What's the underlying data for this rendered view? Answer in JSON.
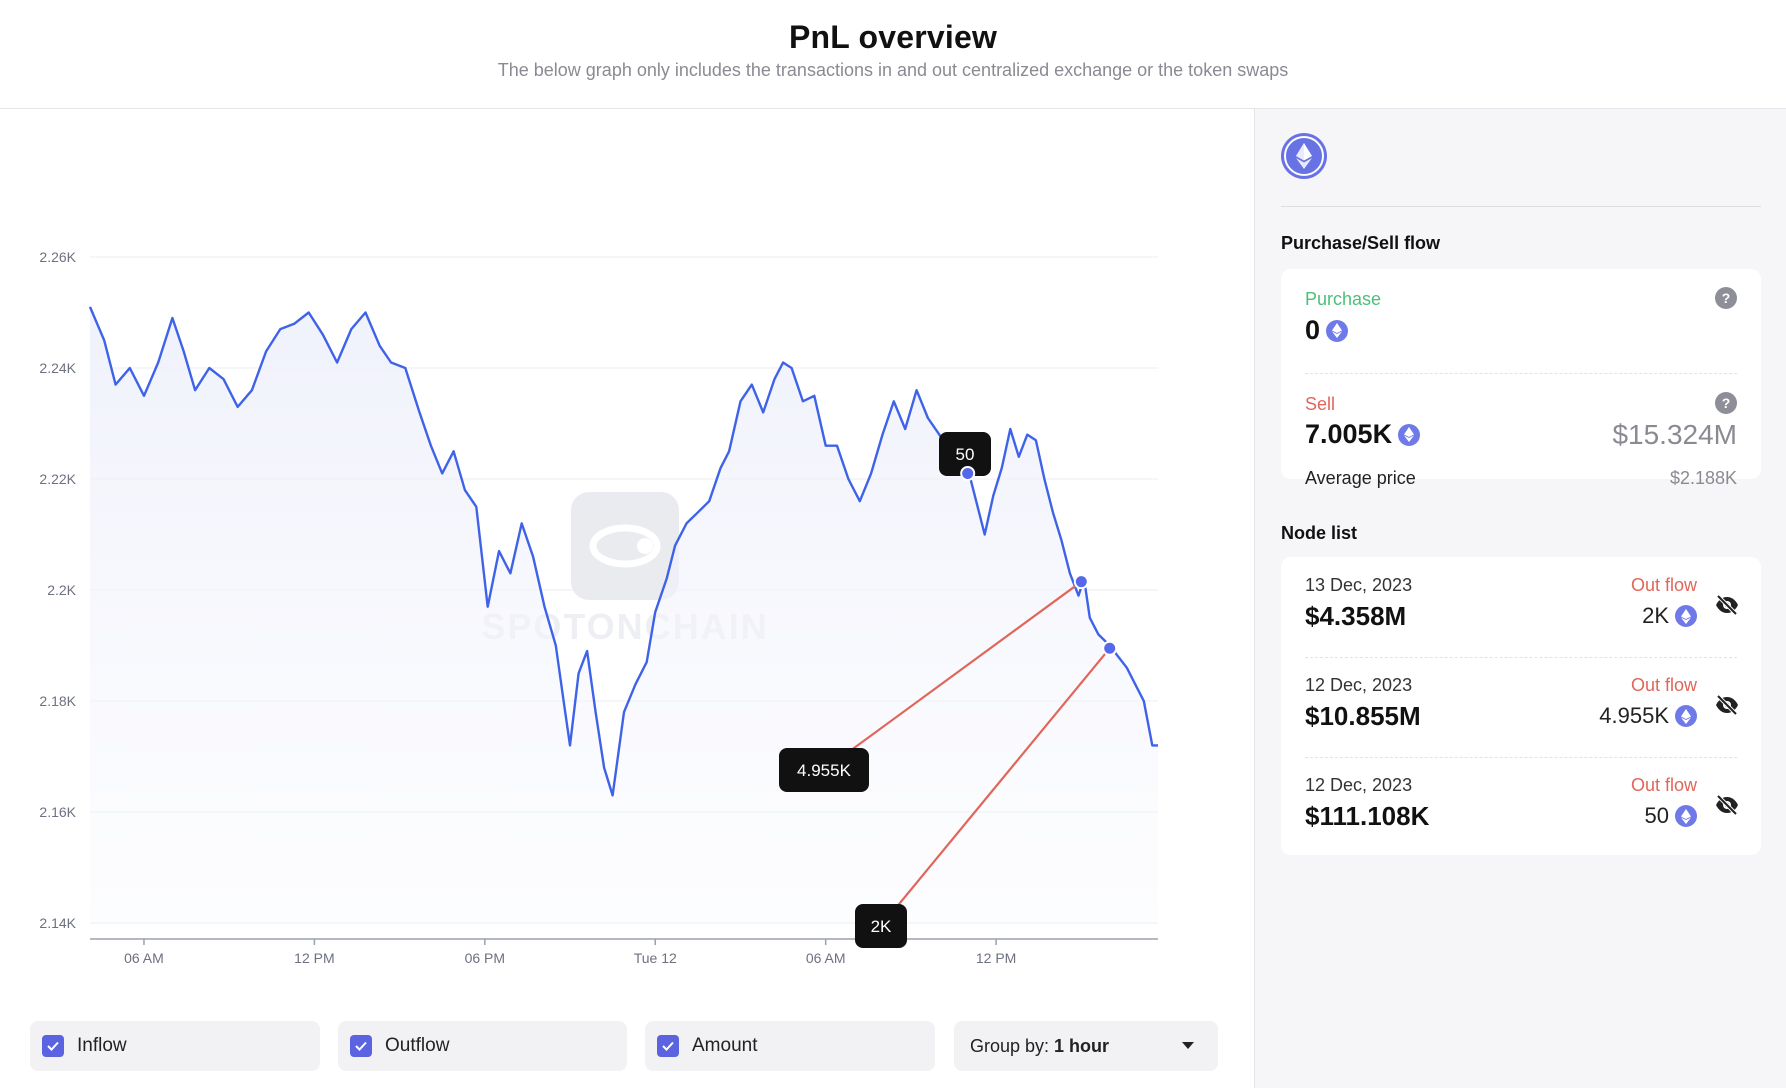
{
  "header": {
    "title": "PnL overview",
    "subtitle": "The below graph only includes the transactions in and out centralized exchange or the token swaps"
  },
  "chart_data": {
    "type": "line",
    "watermark": "SPOTONCHAIN",
    "y_ticks": [
      "2.14K",
      "2.16K",
      "2.18K",
      "2.2K",
      "2.22K",
      "2.24K",
      "2.26K"
    ],
    "ylim": [
      2140,
      2260
    ],
    "x_ticks": [
      "06 AM",
      "12 PM",
      "06 PM",
      "Tue 12",
      "06 AM",
      "12 PM"
    ],
    "x_tick_hours": [
      6,
      12,
      18,
      24,
      30,
      36
    ],
    "xlim_hours": [
      4.1,
      41.7
    ],
    "line_color": "#3f63e8",
    "series": [
      {
        "values": [
          [
            4.1,
            2251
          ],
          [
            4.6,
            2245
          ],
          [
            5.0,
            2237
          ],
          [
            5.5,
            2240
          ],
          [
            6.0,
            2235
          ],
          [
            6.5,
            2241
          ],
          [
            7.0,
            2249
          ],
          [
            7.4,
            2243
          ],
          [
            7.8,
            2236
          ],
          [
            8.3,
            2240
          ],
          [
            8.8,
            2238
          ],
          [
            9.3,
            2233
          ],
          [
            9.8,
            2236
          ],
          [
            10.3,
            2243
          ],
          [
            10.8,
            2247
          ],
          [
            11.3,
            2248
          ],
          [
            11.8,
            2250
          ],
          [
            12.3,
            2246
          ],
          [
            12.8,
            2241
          ],
          [
            13.3,
            2247
          ],
          [
            13.8,
            2250
          ],
          [
            14.3,
            2244
          ],
          [
            14.7,
            2241
          ],
          [
            15.2,
            2240
          ],
          [
            15.7,
            2232
          ],
          [
            16.1,
            2226
          ],
          [
            16.5,
            2221
          ],
          [
            16.9,
            2225
          ],
          [
            17.3,
            2218
          ],
          [
            17.7,
            2215
          ],
          [
            18.1,
            2197
          ],
          [
            18.5,
            2207
          ],
          [
            18.9,
            2203
          ],
          [
            19.3,
            2212
          ],
          [
            19.7,
            2206
          ],
          [
            20.1,
            2197
          ],
          [
            20.5,
            2190
          ],
          [
            20.8,
            2179
          ],
          [
            21.0,
            2172
          ],
          [
            21.3,
            2185
          ],
          [
            21.6,
            2189
          ],
          [
            21.9,
            2178
          ],
          [
            22.2,
            2168
          ],
          [
            22.5,
            2163
          ],
          [
            22.9,
            2178
          ],
          [
            23.3,
            2183
          ],
          [
            23.7,
            2187
          ],
          [
            24.0,
            2196
          ],
          [
            24.4,
            2202
          ],
          [
            24.7,
            2208
          ],
          [
            25.1,
            2212
          ],
          [
            25.5,
            2214
          ],
          [
            25.9,
            2216
          ],
          [
            26.3,
            2222
          ],
          [
            26.6,
            2225
          ],
          [
            27.0,
            2234
          ],
          [
            27.4,
            2237
          ],
          [
            27.8,
            2232
          ],
          [
            28.2,
            2238
          ],
          [
            28.5,
            2241
          ],
          [
            28.8,
            2240
          ],
          [
            29.2,
            2234
          ],
          [
            29.6,
            2235
          ],
          [
            30.0,
            2226
          ],
          [
            30.4,
            2226
          ],
          [
            30.8,
            2220
          ],
          [
            31.2,
            2216
          ],
          [
            31.6,
            2221
          ],
          [
            32.0,
            2228
          ],
          [
            32.4,
            2234
          ],
          [
            32.8,
            2229
          ],
          [
            33.2,
            2236
          ],
          [
            33.6,
            2231
          ],
          [
            34.0,
            2228
          ],
          [
            34.4,
            2225
          ],
          [
            34.8,
            2223
          ],
          [
            35.0,
            2222
          ],
          [
            35.3,
            2216
          ],
          [
            35.6,
            2210
          ],
          [
            35.9,
            2217
          ],
          [
            36.2,
            2222
          ],
          [
            36.5,
            2229
          ],
          [
            36.8,
            2224
          ],
          [
            37.1,
            2228
          ],
          [
            37.4,
            2227
          ],
          [
            37.7,
            2220
          ],
          [
            38.0,
            2214
          ],
          [
            38.3,
            2209
          ],
          [
            38.6,
            2203
          ],
          [
            38.9,
            2199
          ],
          [
            39.1,
            2202
          ],
          [
            39.3,
            2195
          ],
          [
            39.6,
            2192
          ],
          [
            40.0,
            2190
          ],
          [
            40.3,
            2188
          ],
          [
            40.6,
            2186
          ],
          [
            40.9,
            2183
          ],
          [
            41.2,
            2180
          ],
          [
            41.5,
            2172
          ],
          [
            41.7,
            2172
          ]
        ]
      }
    ],
    "annotations": [
      {
        "label": "50",
        "hour": 35.0,
        "value": 2221.0
      },
      {
        "label": "4.955K",
        "hour": 39.0,
        "value": 2201.5
      },
      {
        "label": "2K",
        "hour": 40.0,
        "value": 2189.5
      }
    ]
  },
  "legend": {
    "inflow": "Inflow",
    "outflow": "Outflow",
    "amount": "Amount",
    "group_by_label": "Group by:",
    "group_by_value": "1 hour"
  },
  "sidebar": {
    "token_icon": "ethereum-icon",
    "purchase_sell_title": "Purchase/Sell flow",
    "purchase_label": "Purchase",
    "purchase_value": "0",
    "sell_label": "Sell",
    "sell_value": "7.005K",
    "sell_usd": "$15.324M",
    "avg_price_label": "Average price",
    "avg_price_value": "$2.188K",
    "node_list_title": "Node list",
    "colors": {
      "purchase": "#4cbf7a",
      "sell": "#e0665a",
      "accent": "#6772e5"
    },
    "nodes": [
      {
        "date": "13 Dec, 2023",
        "amount": "$4.358M",
        "flow": "Out flow",
        "qty": "2K"
      },
      {
        "date": "12 Dec, 2023",
        "amount": "$10.855M",
        "flow": "Out flow",
        "qty": "4.955K"
      },
      {
        "date": "12 Dec, 2023",
        "amount": "$111.108K",
        "flow": "Out flow",
        "qty": "50"
      }
    ]
  }
}
